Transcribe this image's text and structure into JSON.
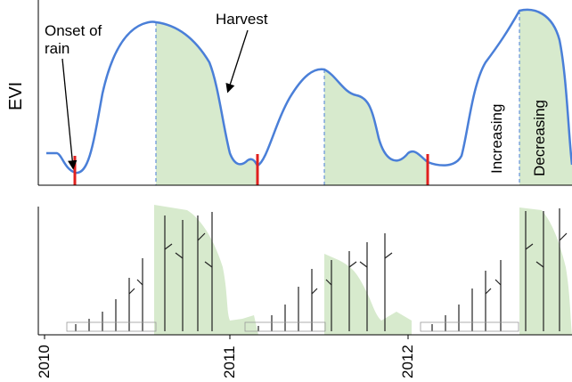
{
  "axis_label": "EVI",
  "annotations": {
    "onset": "Onset of rain",
    "harvest": "Harvest",
    "increasing": "Increasing",
    "decreasing": "Decreasing"
  },
  "years": [
    "2010",
    "2011",
    "2012"
  ]
}
